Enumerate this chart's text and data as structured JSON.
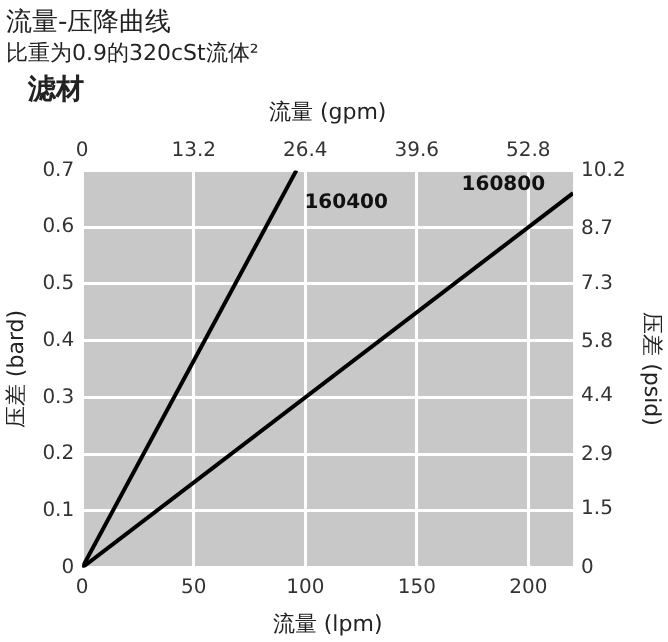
{
  "chart_data": {
    "type": "line",
    "title": "流量-压降曲线",
    "subtitle": "比重为0.9的320cSt流体²",
    "annotations": [
      "滤材"
    ],
    "xlabel": "流量 (lpm)",
    "x2label": "流量 (gpm)",
    "ylabel": "压差 (bard)",
    "y2label": "压差 (psid)",
    "xlim": [
      0,
      220
    ],
    "xticks": [
      0,
      50,
      100,
      150,
      200
    ],
    "x2lim": [
      0,
      58.1
    ],
    "x2ticks": [
      0,
      13.2,
      26.4,
      39.6,
      52.8
    ],
    "ylim": [
      0,
      0.7
    ],
    "yticks": [
      0,
      0.1,
      0.2,
      0.3,
      0.4,
      0.5,
      0.6,
      0.7
    ],
    "y2lim": [
      0,
      10.2
    ],
    "y2ticks": [
      0,
      1.5,
      2.9,
      4.4,
      5.8,
      7.3,
      8.7,
      10.2
    ],
    "grid": true,
    "legend": false,
    "marker": "none",
    "line_style": "solid",
    "series": [
      {
        "name": "160400",
        "color": "#000000",
        "x": [
          0,
          96
        ],
        "values": [
          0,
          0.7
        ]
      },
      {
        "name": "160800",
        "color": "#000000",
        "x": [
          0,
          220
        ],
        "values": [
          0,
          0.66
        ]
      }
    ]
  }
}
